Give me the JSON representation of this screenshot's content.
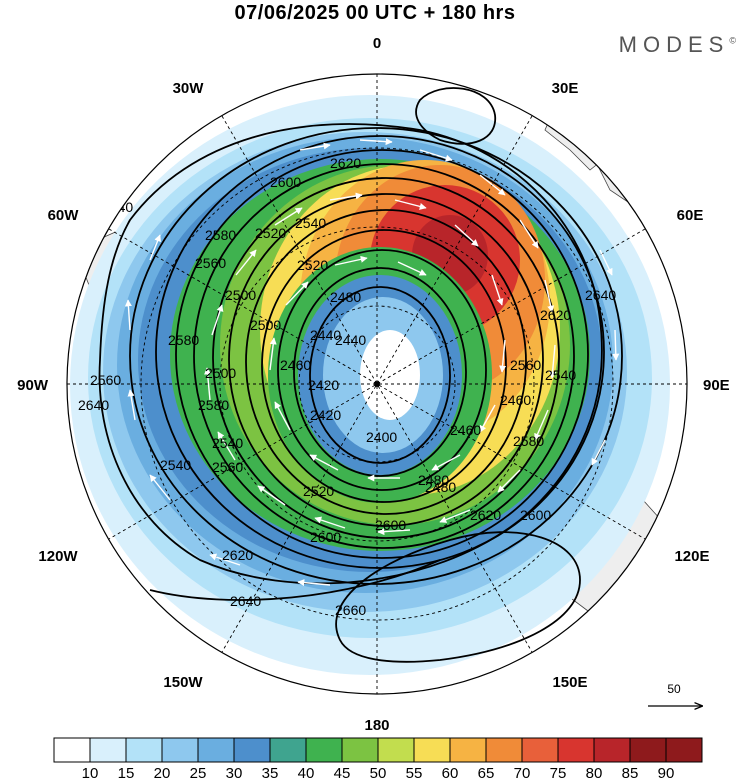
{
  "title": "07/06/2025  00 UTC  + 180 hrs",
  "brand": {
    "name": "MODES",
    "mark": "©"
  },
  "longitude_labels": {
    "top": "0",
    "bottom": "180",
    "left": "90W",
    "right": "90E",
    "nw30": "30W",
    "ne30": "30E",
    "nw60": "60W",
    "ne60": "60E",
    "sw120": "120W",
    "se120": "120E",
    "sw150": "150W",
    "se150": "150E"
  },
  "contour_labels": [
    "2640",
    "2620",
    "2600",
    "2580",
    "2560",
    "2540",
    "2520",
    "2500",
    "2480",
    "2460",
    "2440",
    "2420",
    "2400",
    "2640",
    "2620",
    "2600",
    "2580",
    "2560",
    "2540",
    "2520",
    "2500",
    "2480",
    "2460",
    "2440",
    "2420",
    "2660",
    "2640",
    "2620",
    "2600",
    "2580",
    "2560",
    "2540",
    "2520",
    "2500",
    "2480",
    "2460",
    "2640",
    "2620",
    "2600",
    "2580",
    "2560",
    "2540"
  ],
  "reference_vector": {
    "label": "50"
  },
  "colorbar": {
    "labels": [
      "10",
      "15",
      "20",
      "25",
      "30",
      "35",
      "40",
      "45",
      "50",
      "55",
      "60",
      "65",
      "70",
      "75",
      "80",
      "85",
      "90"
    ],
    "colors": [
      "#ffffff",
      "#d9f0fc",
      "#b3e2f8",
      "#8ec8ee",
      "#6aaee0",
      "#4d8fcc",
      "#3fa48f",
      "#3fb24f",
      "#7cc342",
      "#c2dd4e",
      "#f7dd55",
      "#f6b343",
      "#f08b38",
      "#e8603a",
      "#d8352f",
      "#b8252a",
      "#8e1a1c"
    ]
  },
  "map_data": {
    "projection": "south polar stereographic",
    "field_shaded": "wind speed",
    "field_contour": "geopotential height",
    "contour_levels": [
      2400,
      2420,
      2440,
      2460,
      2480,
      2500,
      2520,
      2540,
      2560,
      2580,
      2600,
      2620,
      2640,
      2660
    ],
    "colors": {
      "grid": "#000000",
      "contour": "#000000",
      "vector": "#ffffff",
      "land": "#eeeeee"
    }
  }
}
